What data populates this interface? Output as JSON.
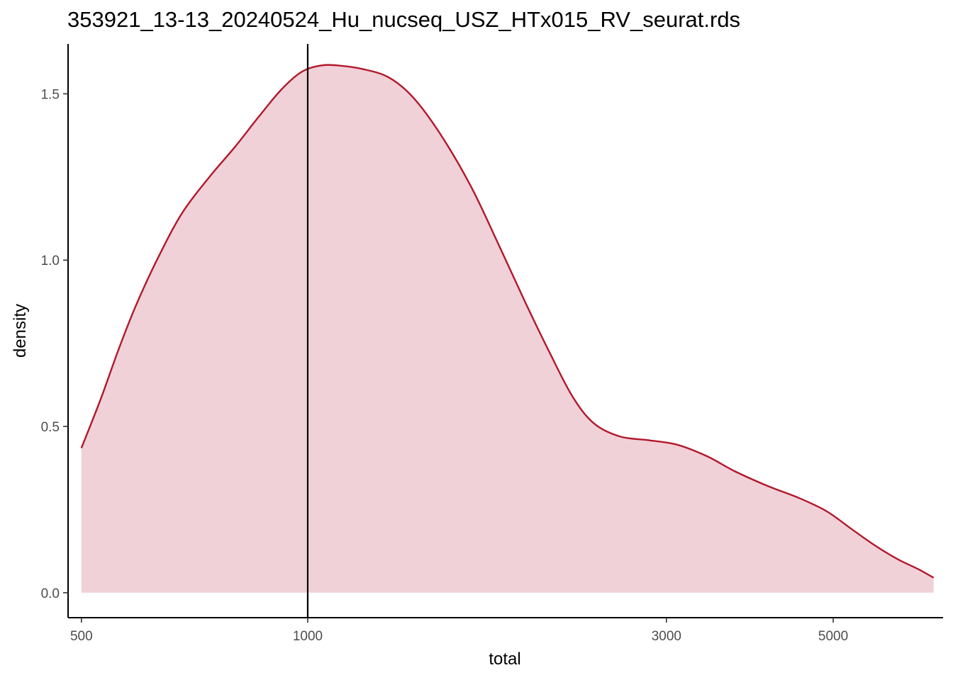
{
  "chart_data": {
    "type": "area",
    "title": "353921_13-13_20240524_Hu_nucseq_USZ_HTx015_RV_seurat.rds",
    "xlabel": "total",
    "ylabel": "density",
    "x_scale": "log10",
    "xlim": [
      480,
      7000
    ],
    "ylim": [
      -0.075,
      1.65
    ],
    "x_ticks": [
      {
        "value": 500,
        "label": "500"
      },
      {
        "value": 1000,
        "label": "1000"
      },
      {
        "value": 3000,
        "label": "3000"
      },
      {
        "value": 5000,
        "label": "5000"
      }
    ],
    "y_ticks": [
      {
        "value": 0.0,
        "label": "0.0"
      },
      {
        "value": 0.5,
        "label": "0.5"
      },
      {
        "value": 1.0,
        "label": "1.0"
      },
      {
        "value": 1.5,
        "label": "1.5"
      }
    ],
    "threshold_line": {
      "x": 1000,
      "color": "#000000"
    },
    "series": [
      {
        "color": "#b2182b",
        "fill": "#f0d1d8",
        "points": [
          [
            500,
            0.435
          ],
          [
            530,
            0.58
          ],
          [
            560,
            0.73
          ],
          [
            590,
            0.86
          ],
          [
            630,
            1.0
          ],
          [
            680,
            1.14
          ],
          [
            740,
            1.25
          ],
          [
            800,
            1.34
          ],
          [
            860,
            1.43
          ],
          [
            920,
            1.51
          ],
          [
            980,
            1.565
          ],
          [
            1040,
            1.585
          ],
          [
            1100,
            1.585
          ],
          [
            1180,
            1.575
          ],
          [
            1280,
            1.55
          ],
          [
            1380,
            1.49
          ],
          [
            1500,
            1.38
          ],
          [
            1650,
            1.22
          ],
          [
            1800,
            1.04
          ],
          [
            1950,
            0.87
          ],
          [
            2100,
            0.72
          ],
          [
            2250,
            0.59
          ],
          [
            2400,
            0.51
          ],
          [
            2600,
            0.47
          ],
          [
            2850,
            0.458
          ],
          [
            3100,
            0.445
          ],
          [
            3400,
            0.41
          ],
          [
            3700,
            0.365
          ],
          [
            4100,
            0.32
          ],
          [
            4500,
            0.285
          ],
          [
            4900,
            0.245
          ],
          [
            5300,
            0.19
          ],
          [
            5700,
            0.14
          ],
          [
            6100,
            0.1
          ],
          [
            6500,
            0.07
          ],
          [
            6800,
            0.045
          ]
        ]
      }
    ],
    "grid": false
  }
}
